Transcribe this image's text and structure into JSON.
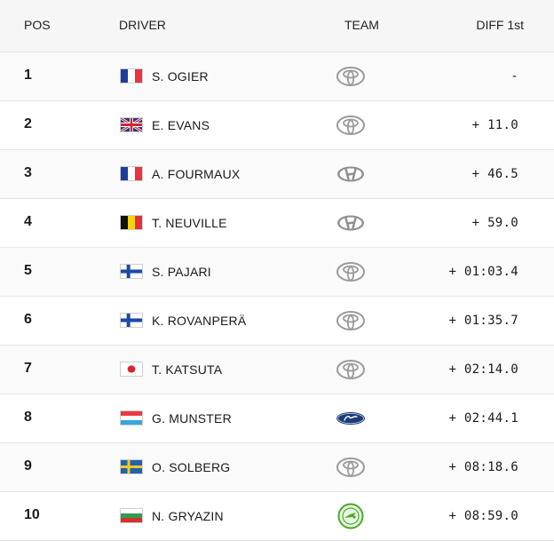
{
  "header": {
    "pos": "POS",
    "driver": "DRIVER",
    "team": "TEAM",
    "diff": "DIFF 1st"
  },
  "rows": [
    {
      "pos": "1",
      "flag": "france-flag",
      "driver": "S. OGIER",
      "team": "toyota-logo",
      "diff": "-"
    },
    {
      "pos": "2",
      "flag": "uk-flag",
      "driver": "E. EVANS",
      "team": "toyota-logo",
      "diff": "+ 11.0"
    },
    {
      "pos": "3",
      "flag": "france-flag",
      "driver": "A. FOURMAUX",
      "team": "hyundai-logo",
      "diff": "+ 46.5"
    },
    {
      "pos": "4",
      "flag": "belgium-flag",
      "driver": "T. NEUVILLE",
      "team": "hyundai-logo",
      "diff": "+ 59.0"
    },
    {
      "pos": "5",
      "flag": "finland-flag",
      "driver": "S. PAJARI",
      "team": "toyota-logo",
      "diff": "+ 01:03.4"
    },
    {
      "pos": "6",
      "flag": "finland-flag",
      "driver": "K. ROVANPERÄ",
      "team": "toyota-logo",
      "diff": "+ 01:35.7"
    },
    {
      "pos": "7",
      "flag": "japan-flag",
      "driver": "T. KATSUTA",
      "team": "toyota-logo",
      "diff": "+ 02:14.0"
    },
    {
      "pos": "8",
      "flag": "luxembourg-flag",
      "driver": "G. MUNSTER",
      "team": "ford-logo",
      "diff": "+ 02:44.1"
    },
    {
      "pos": "9",
      "flag": "sweden-flag",
      "driver": "O. SOLBERG",
      "team": "toyota-logo",
      "diff": "+ 08:18.6"
    },
    {
      "pos": "10",
      "flag": "bulgaria-flag",
      "driver": "N. GRYAZIN",
      "team": "skoda-logo",
      "diff": "+ 08:59.0"
    }
  ],
  "colors": {
    "header_bg": "#f6f6f6",
    "row_divider": "#e6e6e6",
    "logo_grey": "#9a9a9a",
    "ford_blue": "#1e3d7a",
    "skoda_green": "#4ba82e"
  }
}
